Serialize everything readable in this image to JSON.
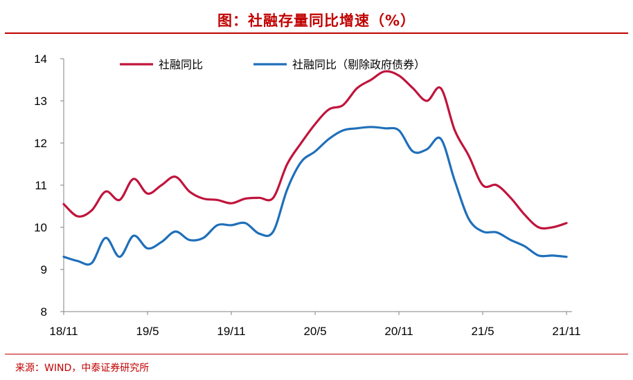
{
  "title": "图：社融存量同比增速（%）",
  "source": "来源：WIND，中泰证券研究所",
  "chart_data": {
    "type": "line",
    "title": "图：社融存量同比增速（%）",
    "xlabel": "",
    "ylabel": "",
    "ylim": [
      8,
      14
    ],
    "yticks": [
      "8",
      "9",
      "10",
      "11",
      "12",
      "13",
      "14"
    ],
    "xtick_labels": [
      "18/11",
      "19/5",
      "19/11",
      "20/5",
      "20/11",
      "21/5",
      "21/11"
    ],
    "grid": false,
    "legend_position": "top",
    "x": [
      "2018-11",
      "2018-12",
      "2019-01",
      "2019-02",
      "2019-03",
      "2019-04",
      "2019-05",
      "2019-06",
      "2019-07",
      "2019-08",
      "2019-09",
      "2019-10",
      "2019-11",
      "2019-12",
      "2020-01",
      "2020-02",
      "2020-03",
      "2020-04",
      "2020-05",
      "2020-06",
      "2020-07",
      "2020-08",
      "2020-09",
      "2020-10",
      "2020-11",
      "2020-12",
      "2021-01",
      "2021-02",
      "2021-03",
      "2021-04",
      "2021-05",
      "2021-06",
      "2021-07",
      "2021-08",
      "2021-09",
      "2021-10",
      "2021-11"
    ],
    "series": [
      {
        "name": "社融同比",
        "color": "#c0143c",
        "values": [
          10.55,
          10.26,
          10.4,
          10.85,
          10.65,
          11.15,
          10.8,
          11.0,
          11.2,
          10.85,
          10.68,
          10.65,
          10.57,
          10.68,
          10.7,
          10.7,
          11.5,
          12.0,
          12.45,
          12.8,
          12.9,
          13.3,
          13.5,
          13.7,
          13.6,
          13.3,
          13.0,
          13.3,
          12.3,
          11.7,
          11.0,
          11.0,
          10.7,
          10.3,
          10.0,
          10.0,
          10.1
        ]
      },
      {
        "name": "社融同比（剔除政府债券）",
        "color": "#1f6fba",
        "values": [
          9.3,
          9.2,
          9.15,
          9.75,
          9.3,
          9.8,
          9.5,
          9.65,
          9.9,
          9.7,
          9.75,
          10.05,
          10.05,
          10.1,
          9.85,
          9.9,
          10.9,
          11.55,
          11.8,
          12.1,
          12.3,
          12.35,
          12.38,
          12.35,
          12.3,
          11.8,
          11.85,
          12.1,
          11.1,
          10.2,
          9.9,
          9.88,
          9.7,
          9.55,
          9.33,
          9.33,
          9.3
        ]
      }
    ]
  }
}
